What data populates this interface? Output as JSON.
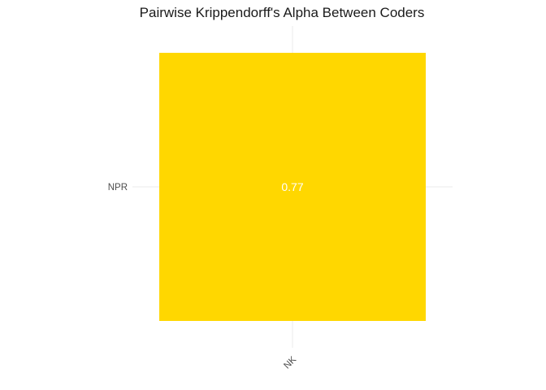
{
  "chart_data": {
    "type": "heatmap",
    "title": "Pairwise Krippendorff's Alpha Between Coders",
    "xlabel": "",
    "ylabel": "",
    "x_categories": [
      "NK"
    ],
    "y_categories": [
      "NPR"
    ],
    "cells": [
      {
        "x": "NK",
        "y": "NPR",
        "value": 0.77,
        "label": "0.77"
      }
    ],
    "cell_color": "#FFD700",
    "label_color": "#FFFFFF",
    "grid": true,
    "legend": "none",
    "x_tick_rotation": -45
  }
}
